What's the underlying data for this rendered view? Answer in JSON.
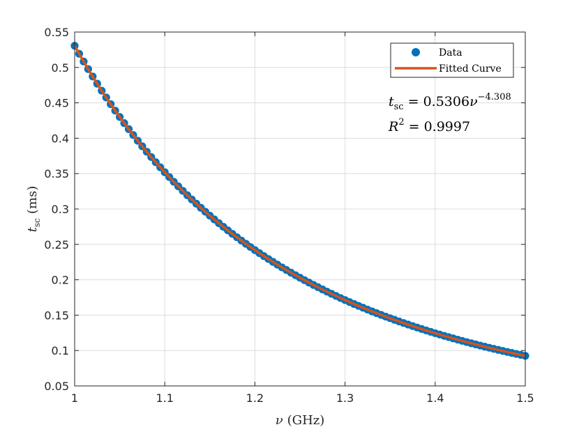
{
  "chart_data": {
    "type": "scatter",
    "xlabel": {
      "symbol": "ν",
      "unit": "(GHz)"
    },
    "ylabel": {
      "symbol": "t",
      "subscript": "sc",
      "unit": "(ms)"
    },
    "xlim": [
      1,
      1.5
    ],
    "ylim": [
      0.05,
      0.55
    ],
    "xticks": [
      "1",
      "1.1",
      "1.2",
      "1.3",
      "1.4",
      "1.5"
    ],
    "yticks": [
      "0.05",
      "0.1",
      "0.15",
      "0.2",
      "0.25",
      "0.3",
      "0.35",
      "0.4",
      "0.45",
      "0.5",
      "0.55"
    ],
    "grid": true,
    "legend_position": "top-right",
    "series": [
      {
        "name": "Data",
        "kind": "scatter",
        "color": "#0072BD",
        "x_start": 1.0,
        "x_end": 1.5,
        "x_step": 0.005,
        "model": {
          "coefficient": 0.5306,
          "exponent": -4.308
        }
      },
      {
        "name": "Fitted Curve",
        "kind": "line",
        "color": "#D95319",
        "model": {
          "coefficient": 0.5306,
          "exponent": -4.308
        }
      }
    ],
    "annotations": {
      "equation": {
        "lhs": "t",
        "lhs_sub": "sc",
        "equals": " = 0.5306",
        "var": "ν",
        "exponent": "−4.308"
      },
      "r_squared": {
        "symbol": "R",
        "power": "2",
        "text": " = 0.9997"
      }
    }
  }
}
